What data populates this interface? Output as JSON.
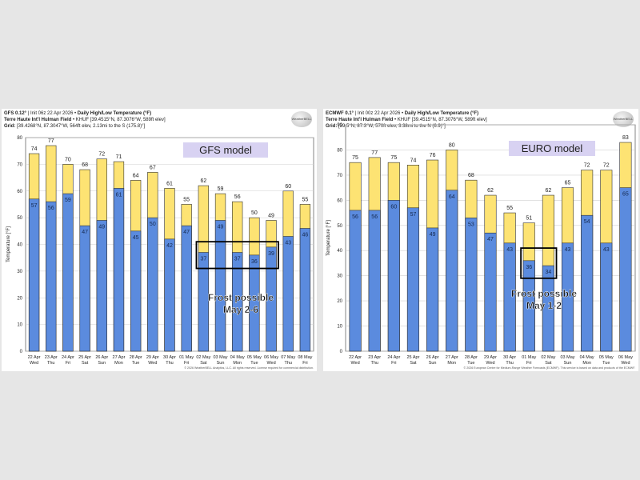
{
  "colors": {
    "high": "#fde373",
    "low": "#5b8bde",
    "bar_edge": "#333333",
    "label_bg": "#d8d2f2",
    "frost_box": "#000000",
    "grid": "#d0d0d0"
  },
  "chart_data": [
    {
      "type": "bar",
      "header": {
        "model": "GFS 0.12°",
        "init": "Init 06z 22 Apr 2026",
        "title": "Daily High/Low Temperature (°F)",
        "station": "Terre Haute Int'l Hulman Field",
        "station_meta": "KHUF [39.4515°N, 87.3076°W, 589ft elev]",
        "grid_label": "Grid:",
        "grid": "[39.4268°N, 87.3047°W, 564ft elev, 2.13mi to the S (175.8)°]"
      },
      "logo": "WeatherBELL",
      "label": "GFS model",
      "ylabel": "Temperature [°F]",
      "ylim": [
        0,
        80
      ],
      "yticks": [
        0,
        10,
        20,
        30,
        40,
        50,
        60,
        70,
        80
      ],
      "dates": [
        "22 Apr",
        "23 Apr",
        "24 Apr",
        "25 Apr",
        "26 Apr",
        "27 Apr",
        "28 Apr",
        "29 Apr",
        "30 Apr",
        "01 May",
        "02 May",
        "03 May",
        "04 May",
        "05 May",
        "06 May",
        "07 May",
        "08 May"
      ],
      "days": [
        "Wed",
        "Thu",
        "Fri",
        "Sat",
        "Sun",
        "Mon",
        "Tue",
        "Wed",
        "Thu",
        "Fri",
        "Sat",
        "Sun",
        "Mon",
        "Tue",
        "Wed",
        "Thu",
        "Fri"
      ],
      "series": [
        {
          "name": "High",
          "values": [
            74,
            77,
            70,
            68,
            72,
            71,
            64,
            67,
            61,
            55,
            62,
            59,
            56,
            50,
            49,
            60,
            55
          ]
        },
        {
          "name": "Low",
          "values": [
            57,
            56,
            59,
            47,
            49,
            61,
            45,
            50,
            42,
            47,
            37,
            49,
            37,
            36,
            39,
            43,
            46
          ]
        }
      ],
      "frost": {
        "text_line1": "Frost possible",
        "text_line2": "May 2-6",
        "start_index": 10,
        "end_index": 14,
        "y_low": 31,
        "y_high": 41
      },
      "footer": "© 2026 WeatherBELL Analytics, LLC. All rights reserved. License required for commercial distribution."
    },
    {
      "type": "bar",
      "header": {
        "model": "ECMWF 0.1°",
        "init": "Init 00z 22 Apr 2026",
        "title": "Daily High/Low Temperature (°F)",
        "station": "Terre Haute Int'l Hulman Field",
        "station_meta": "KHUF [39.4515°N, 87.3076°W, 589ft elev]",
        "grid_label": "Grid:",
        "grid": "[39.5°N, 87.3°W, 570ft elev, 3.38mi to the N (6.9)°]"
      },
      "logo": "WeatherBELL",
      "label": "EURO model",
      "ylabel": "Temperature [°F]",
      "ylim": [
        0,
        90
      ],
      "yticks": [
        0,
        10,
        20,
        30,
        40,
        50,
        60,
        70,
        80,
        90
      ],
      "dates": [
        "22 Apr",
        "23 Apr",
        "24 Apr",
        "25 Apr",
        "26 Apr",
        "27 Apr",
        "28 Apr",
        "29 Apr",
        "30 Apr",
        "01 May",
        "02 May",
        "03 May",
        "04 May",
        "05 May",
        "06 May"
      ],
      "days": [
        "Wed",
        "Thu",
        "Fri",
        "Sat",
        "Sun",
        "Mon",
        "Tue",
        "Wed",
        "Thu",
        "Fri",
        "Sat",
        "Sun",
        "Mon",
        "Tue",
        "Wed"
      ],
      "series": [
        {
          "name": "High",
          "values": [
            75,
            77,
            75,
            74,
            76,
            80,
            68,
            62,
            55,
            51,
            62,
            65,
            72,
            72,
            83
          ]
        },
        {
          "name": "Low",
          "values": [
            56,
            56,
            60,
            57,
            49,
            64,
            53,
            47,
            43,
            36,
            34,
            43,
            54,
            43,
            65
          ]
        }
      ],
      "frost": {
        "text_line1": "Frost possible",
        "text_line2": "May 1-2",
        "start_index": 9,
        "end_index": 10,
        "y_low": 29,
        "y_high": 41
      },
      "footer": "© 2026 European Centre for Medium-Range Weather Forecasts (ECMWF). This service is based on data and products of the ECMWF."
    }
  ]
}
